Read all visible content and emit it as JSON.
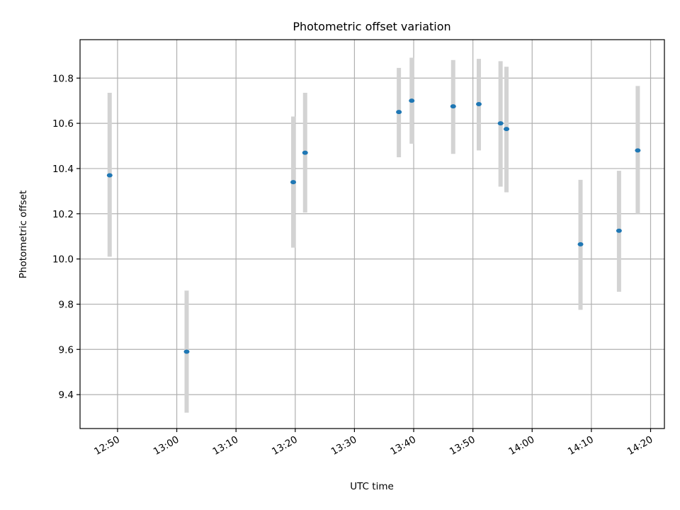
{
  "chart_data": {
    "type": "scatter",
    "title": "Photometric offset variation",
    "xlabel": "UTC time",
    "ylabel": "Photometric offset",
    "x_ticks": [
      "12:50",
      "13:00",
      "13:10",
      "13:20",
      "13:30",
      "13:40",
      "13:50",
      "14:00",
      "14:10",
      "14:20"
    ],
    "y_ticks": [
      "9.4",
      "9.6",
      "9.8",
      "10.0",
      "10.2",
      "10.4",
      "10.6",
      "10.8"
    ],
    "xlim": [
      "12:43:40",
      "14:22:20"
    ],
    "ylim": [
      9.25,
      10.97
    ],
    "grid": true,
    "colors": {
      "point": "#1f77b4",
      "errorbar": "#d3d3d3",
      "grid": "#b0b0b0"
    },
    "points": [
      {
        "x": "12:48:40",
        "y": 10.37,
        "ylow": 10.01,
        "yhigh": 10.735
      },
      {
        "x": "13:01:40",
        "y": 9.59,
        "ylow": 9.32,
        "yhigh": 9.86
      },
      {
        "x": "13:19:40",
        "y": 10.34,
        "ylow": 10.05,
        "yhigh": 10.63
      },
      {
        "x": "13:21:40",
        "y": 10.47,
        "ylow": 10.205,
        "yhigh": 10.735
      },
      {
        "x": "13:37:30",
        "y": 10.65,
        "ylow": 10.45,
        "yhigh": 10.845
      },
      {
        "x": "13:39:40",
        "y": 10.7,
        "ylow": 10.51,
        "yhigh": 10.89
      },
      {
        "x": "13:46:40",
        "y": 10.675,
        "ylow": 10.465,
        "yhigh": 10.88
      },
      {
        "x": "13:51:00",
        "y": 10.685,
        "ylow": 10.48,
        "yhigh": 10.885
      },
      {
        "x": "13:54:40",
        "y": 10.6,
        "ylow": 10.32,
        "yhigh": 10.875
      },
      {
        "x": "13:55:40",
        "y": 10.575,
        "ylow": 10.295,
        "yhigh": 10.85
      },
      {
        "x": "14:08:10",
        "y": 10.065,
        "ylow": 9.775,
        "yhigh": 10.35
      },
      {
        "x": "14:14:40",
        "y": 10.125,
        "ylow": 9.855,
        "yhigh": 10.39
      },
      {
        "x": "14:17:50",
        "y": 10.48,
        "ylow": 10.2,
        "yhigh": 10.765
      }
    ]
  }
}
